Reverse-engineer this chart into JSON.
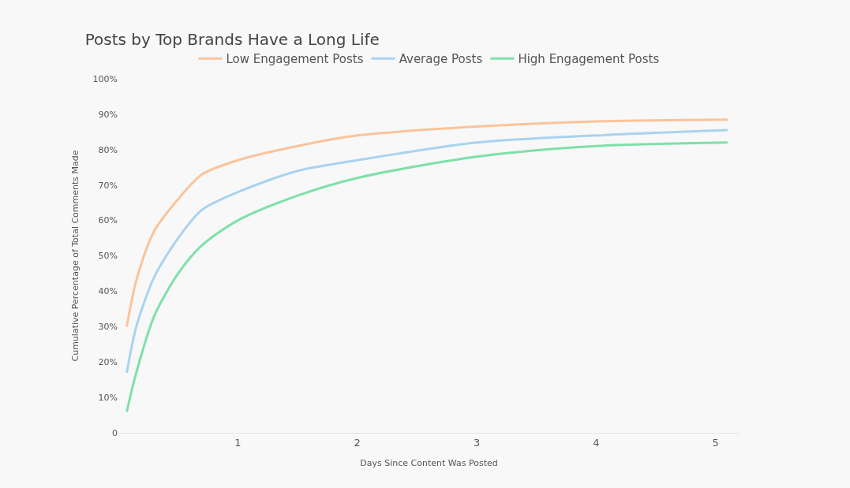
{
  "chart_data": {
    "type": "line",
    "title": "Posts by Top Brands Have a Long Life",
    "xlabel": "Days Since Content Was Posted",
    "ylabel": "Cumulative Percentage of Total Comments Made",
    "x": [
      0.07,
      0.15,
      0.3,
      0.5,
      0.7,
      1,
      1.5,
      2,
      3,
      4,
      5.1
    ],
    "series": [
      {
        "name": "Low Engagement Posts",
        "color": "#fbc39a",
        "values": [
          30,
          43,
          57,
          66,
          73,
          77,
          81,
          84,
          86.5,
          88,
          88.5
        ]
      },
      {
        "name": "Average Posts",
        "color": "#a9d3ef",
        "values": [
          17,
          30,
          44,
          55,
          63,
          68,
          74,
          77,
          82,
          84,
          85.5
        ]
      },
      {
        "name": "High Engagement Posts",
        "color": "#7ee0a9",
        "values": [
          6,
          17,
          33,
          45,
          53,
          60,
          67,
          72,
          78,
          81,
          82
        ]
      }
    ],
    "xlim": [
      0,
      5.2
    ],
    "ylim": [
      0,
      100
    ],
    "xticks": [
      1,
      2,
      3,
      4,
      5
    ],
    "yticks": [
      {
        "value": 0,
        "label": "0"
      },
      {
        "value": 10,
        "label": "10%"
      },
      {
        "value": 20,
        "label": "20%"
      },
      {
        "value": 30,
        "label": "30%"
      },
      {
        "value": 40,
        "label": "40%"
      },
      {
        "value": 50,
        "label": "50%"
      },
      {
        "value": 60,
        "label": "60%"
      },
      {
        "value": 70,
        "label": "70%"
      },
      {
        "value": 80,
        "label": "80%"
      },
      {
        "value": 90,
        "label": "90%"
      },
      {
        "value": 100,
        "label": "100%"
      }
    ],
    "grid": false,
    "legend": "top",
    "marker": "none",
    "line_style": "solid"
  }
}
